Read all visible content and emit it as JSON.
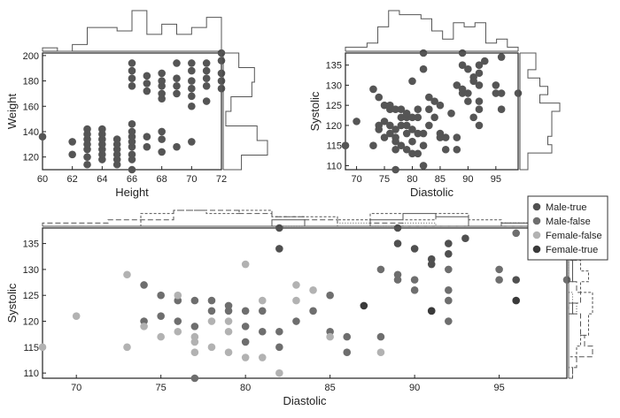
{
  "chart_data": [
    {
      "type": "scatter",
      "panel": "top-left",
      "xlabel": "Height",
      "ylabel": "Weight",
      "xlim": [
        60,
        72
      ],
      "ylim": [
        110,
        202
      ],
      "xticks": [
        60,
        62,
        64,
        66,
        68,
        70,
        72
      ],
      "yticks": [
        120,
        140,
        160,
        180,
        200
      ],
      "marginal_histograms": true,
      "points": [
        {
          "x": 60,
          "y": 136
        },
        {
          "x": 62,
          "y": 122
        },
        {
          "x": 62,
          "y": 132
        },
        {
          "x": 63,
          "y": 114
        },
        {
          "x": 63,
          "y": 120
        },
        {
          "x": 63,
          "y": 126
        },
        {
          "x": 63,
          "y": 130
        },
        {
          "x": 63,
          "y": 134
        },
        {
          "x": 63,
          "y": 138
        },
        {
          "x": 63,
          "y": 142
        },
        {
          "x": 64,
          "y": 118
        },
        {
          "x": 64,
          "y": 122
        },
        {
          "x": 64,
          "y": 126
        },
        {
          "x": 64,
          "y": 130
        },
        {
          "x": 64,
          "y": 134
        },
        {
          "x": 64,
          "y": 138
        },
        {
          "x": 64,
          "y": 142
        },
        {
          "x": 65,
          "y": 114
        },
        {
          "x": 65,
          "y": 118
        },
        {
          "x": 65,
          "y": 122
        },
        {
          "x": 65,
          "y": 126
        },
        {
          "x": 65,
          "y": 130
        },
        {
          "x": 65,
          "y": 134
        },
        {
          "x": 66,
          "y": 110
        },
        {
          "x": 66,
          "y": 118
        },
        {
          "x": 66,
          "y": 122
        },
        {
          "x": 66,
          "y": 128
        },
        {
          "x": 66,
          "y": 132
        },
        {
          "x": 66,
          "y": 136
        },
        {
          "x": 66,
          "y": 140
        },
        {
          "x": 66,
          "y": 146
        },
        {
          "x": 66,
          "y": 176
        },
        {
          "x": 66,
          "y": 182
        },
        {
          "x": 66,
          "y": 188
        },
        {
          "x": 66,
          "y": 194
        },
        {
          "x": 67,
          "y": 128
        },
        {
          "x": 67,
          "y": 136
        },
        {
          "x": 67,
          "y": 172
        },
        {
          "x": 67,
          "y": 178
        },
        {
          "x": 67,
          "y": 184
        },
        {
          "x": 68,
          "y": 124
        },
        {
          "x": 68,
          "y": 134
        },
        {
          "x": 68,
          "y": 140
        },
        {
          "x": 68,
          "y": 166
        },
        {
          "x": 68,
          "y": 170
        },
        {
          "x": 68,
          "y": 176
        },
        {
          "x": 68,
          "y": 180
        },
        {
          "x": 68,
          "y": 186
        },
        {
          "x": 69,
          "y": 128
        },
        {
          "x": 69,
          "y": 170
        },
        {
          "x": 69,
          "y": 176
        },
        {
          "x": 69,
          "y": 182
        },
        {
          "x": 69,
          "y": 194
        },
        {
          "x": 70,
          "y": 132
        },
        {
          "x": 70,
          "y": 160
        },
        {
          "x": 70,
          "y": 168
        },
        {
          "x": 70,
          "y": 174
        },
        {
          "x": 70,
          "y": 180
        },
        {
          "x": 70,
          "y": 188
        },
        {
          "x": 70,
          "y": 194
        },
        {
          "x": 71,
          "y": 164
        },
        {
          "x": 71,
          "y": 176
        },
        {
          "x": 71,
          "y": 182
        },
        {
          "x": 71,
          "y": 188
        },
        {
          "x": 71,
          "y": 194
        },
        {
          "x": 72,
          "y": 174
        },
        {
          "x": 72,
          "y": 180
        },
        {
          "x": 72,
          "y": 186
        },
        {
          "x": 72,
          "y": 196
        },
        {
          "x": 72,
          "y": 202
        }
      ]
    },
    {
      "type": "scatter",
      "panel": "top-right",
      "xlabel": "Diastolic",
      "ylabel": "Systolic",
      "xlim": [
        68,
        99
      ],
      "ylim": [
        109,
        138
      ],
      "xticks": [
        70,
        75,
        80,
        85,
        90,
        95
      ],
      "yticks": [
        110,
        115,
        120,
        125,
        130,
        135
      ],
      "marginal_histograms": true,
      "points": [
        {
          "x": 68,
          "y": 115
        },
        {
          "x": 70,
          "y": 121
        },
        {
          "x": 73,
          "y": 115
        },
        {
          "x": 73,
          "y": 129
        },
        {
          "x": 74,
          "y": 127
        },
        {
          "x": 74,
          "y": 120
        },
        {
          "x": 74,
          "y": 119
        },
        {
          "x": 75,
          "y": 125
        },
        {
          "x": 75,
          "y": 121
        },
        {
          "x": 75,
          "y": 117
        },
        {
          "x": 76,
          "y": 124
        },
        {
          "x": 76,
          "y": 120
        },
        {
          "x": 76,
          "y": 118
        },
        {
          "x": 76,
          "y": 125
        },
        {
          "x": 77,
          "y": 109
        },
        {
          "x": 77,
          "y": 114
        },
        {
          "x": 77,
          "y": 117
        },
        {
          "x": 77,
          "y": 119
        },
        {
          "x": 77,
          "y": 124
        },
        {
          "x": 77,
          "y": 116
        },
        {
          "x": 78,
          "y": 120
        },
        {
          "x": 78,
          "y": 122
        },
        {
          "x": 78,
          "y": 124
        },
        {
          "x": 78,
          "y": 115
        },
        {
          "x": 79,
          "y": 118
        },
        {
          "x": 79,
          "y": 122
        },
        {
          "x": 79,
          "y": 123
        },
        {
          "x": 79,
          "y": 120
        },
        {
          "x": 79,
          "y": 114
        },
        {
          "x": 80,
          "y": 116
        },
        {
          "x": 80,
          "y": 119
        },
        {
          "x": 80,
          "y": 122
        },
        {
          "x": 80,
          "y": 131
        },
        {
          "x": 80,
          "y": 113
        },
        {
          "x": 81,
          "y": 113
        },
        {
          "x": 81,
          "y": 118
        },
        {
          "x": 81,
          "y": 122
        },
        {
          "x": 81,
          "y": 124
        },
        {
          "x": 82,
          "y": 110
        },
        {
          "x": 82,
          "y": 115
        },
        {
          "x": 82,
          "y": 118
        },
        {
          "x": 82,
          "y": 134
        },
        {
          "x": 82,
          "y": 138
        },
        {
          "x": 83,
          "y": 120
        },
        {
          "x": 83,
          "y": 124
        },
        {
          "x": 83,
          "y": 127
        },
        {
          "x": 84,
          "y": 122
        },
        {
          "x": 84,
          "y": 126
        },
        {
          "x": 85,
          "y": 118
        },
        {
          "x": 85,
          "y": 125
        },
        {
          "x": 85,
          "y": 117
        },
        {
          "x": 86,
          "y": 117
        },
        {
          "x": 86,
          "y": 114
        },
        {
          "x": 87,
          "y": 123
        },
        {
          "x": 88,
          "y": 117
        },
        {
          "x": 88,
          "y": 130
        },
        {
          "x": 88,
          "y": 114
        },
        {
          "x": 89,
          "y": 128
        },
        {
          "x": 89,
          "y": 135
        },
        {
          "x": 89,
          "y": 129
        },
        {
          "x": 89,
          "y": 138
        },
        {
          "x": 90,
          "y": 134
        },
        {
          "x": 90,
          "y": 128
        },
        {
          "x": 90,
          "y": 126
        },
        {
          "x": 91,
          "y": 132
        },
        {
          "x": 91,
          "y": 131
        },
        {
          "x": 91,
          "y": 122
        },
        {
          "x": 92,
          "y": 124
        },
        {
          "x": 92,
          "y": 120
        },
        {
          "x": 92,
          "y": 126
        },
        {
          "x": 92,
          "y": 130
        },
        {
          "x": 92,
          "y": 133
        },
        {
          "x": 92,
          "y": 135
        },
        {
          "x": 93,
          "y": 136
        },
        {
          "x": 95,
          "y": 130
        },
        {
          "x": 95,
          "y": 128
        },
        {
          "x": 96,
          "y": 137
        },
        {
          "x": 96,
          "y": 128
        },
        {
          "x": 96,
          "y": 124
        },
        {
          "x": 99,
          "y": 128
        }
      ]
    },
    {
      "type": "scatter",
      "panel": "bottom",
      "xlabel": "Diastolic",
      "ylabel": "Systolic",
      "xlim": [
        68,
        99
      ],
      "ylim": [
        109,
        138
      ],
      "xticks": [
        70,
        75,
        80,
        85,
        90,
        95
      ],
      "yticks": [
        110,
        115,
        120,
        125,
        130,
        135
      ],
      "legend_position": "top-right",
      "marginal_histograms": true,
      "series": [
        {
          "name": "Male-true",
          "color": "#505050",
          "points": [
            {
              "x": 82,
              "y": 138
            },
            {
              "x": 82,
              "y": 134
            },
            {
              "x": 89,
              "y": 135
            },
            {
              "x": 89,
              "y": 138
            },
            {
              "x": 90,
              "y": 134
            },
            {
              "x": 91,
              "y": 132
            },
            {
              "x": 91,
              "y": 131
            },
            {
              "x": 92,
              "y": 133
            },
            {
              "x": 92,
              "y": 135
            },
            {
              "x": 93,
              "y": 136
            },
            {
              "x": 91,
              "y": 122
            },
            {
              "x": 96,
              "y": 128
            }
          ]
        },
        {
          "name": "Male-false",
          "color": "#6e6e6e",
          "points": [
            {
              "x": 74,
              "y": 127
            },
            {
              "x": 74,
              "y": 120
            },
            {
              "x": 75,
              "y": 125
            },
            {
              "x": 75,
              "y": 121
            },
            {
              "x": 76,
              "y": 124
            },
            {
              "x": 76,
              "y": 120
            },
            {
              "x": 77,
              "y": 124
            },
            {
              "x": 77,
              "y": 119
            },
            {
              "x": 78,
              "y": 122
            },
            {
              "x": 78,
              "y": 124
            },
            {
              "x": 79,
              "y": 122
            },
            {
              "x": 79,
              "y": 123
            },
            {
              "x": 80,
              "y": 119
            },
            {
              "x": 80,
              "y": 122
            },
            {
              "x": 81,
              "y": 122
            },
            {
              "x": 81,
              "y": 118
            },
            {
              "x": 82,
              "y": 118
            },
            {
              "x": 82,
              "y": 115
            },
            {
              "x": 83,
              "y": 120
            },
            {
              "x": 84,
              "y": 122
            },
            {
              "x": 85,
              "y": 118
            },
            {
              "x": 85,
              "y": 125
            },
            {
              "x": 86,
              "y": 117
            },
            {
              "x": 86,
              "y": 114
            },
            {
              "x": 88,
              "y": 117
            },
            {
              "x": 88,
              "y": 130
            },
            {
              "x": 89,
              "y": 128
            },
            {
              "x": 89,
              "y": 129
            },
            {
              "x": 90,
              "y": 128
            },
            {
              "x": 90,
              "y": 126
            },
            {
              "x": 92,
              "y": 124
            },
            {
              "x": 92,
              "y": 126
            },
            {
              "x": 92,
              "y": 130
            },
            {
              "x": 95,
              "y": 130
            },
            {
              "x": 95,
              "y": 128
            },
            {
              "x": 96,
              "y": 137
            },
            {
              "x": 99,
              "y": 128
            },
            {
              "x": 77,
              "y": 109
            },
            {
              "x": 80,
              "y": 116
            },
            {
              "x": 92,
              "y": 120
            }
          ]
        },
        {
          "name": "Female-false",
          "color": "#b2b2b2",
          "points": [
            {
              "x": 68,
              "y": 115
            },
            {
              "x": 70,
              "y": 121
            },
            {
              "x": 73,
              "y": 115
            },
            {
              "x": 73,
              "y": 129
            },
            {
              "x": 74,
              "y": 119
            },
            {
              "x": 75,
              "y": 117
            },
            {
              "x": 76,
              "y": 125
            },
            {
              "x": 76,
              "y": 118
            },
            {
              "x": 77,
              "y": 114
            },
            {
              "x": 77,
              "y": 117
            },
            {
              "x": 77,
              "y": 116
            },
            {
              "x": 78,
              "y": 120
            },
            {
              "x": 78,
              "y": 115
            },
            {
              "x": 79,
              "y": 118
            },
            {
              "x": 79,
              "y": 120
            },
            {
              "x": 79,
              "y": 114
            },
            {
              "x": 80,
              "y": 131
            },
            {
              "x": 80,
              "y": 113
            },
            {
              "x": 81,
              "y": 113
            },
            {
              "x": 81,
              "y": 124
            },
            {
              "x": 82,
              "y": 110
            },
            {
              "x": 83,
              "y": 124
            },
            {
              "x": 83,
              "y": 127
            },
            {
              "x": 84,
              "y": 126
            },
            {
              "x": 85,
              "y": 117
            },
            {
              "x": 88,
              "y": 114
            }
          ]
        },
        {
          "name": "Female-true",
          "color": "#3a3a3a",
          "points": [
            {
              "x": 87,
              "y": 123
            },
            {
              "x": 91,
              "y": 122
            },
            {
              "x": 96,
              "y": 124
            }
          ]
        }
      ]
    }
  ]
}
